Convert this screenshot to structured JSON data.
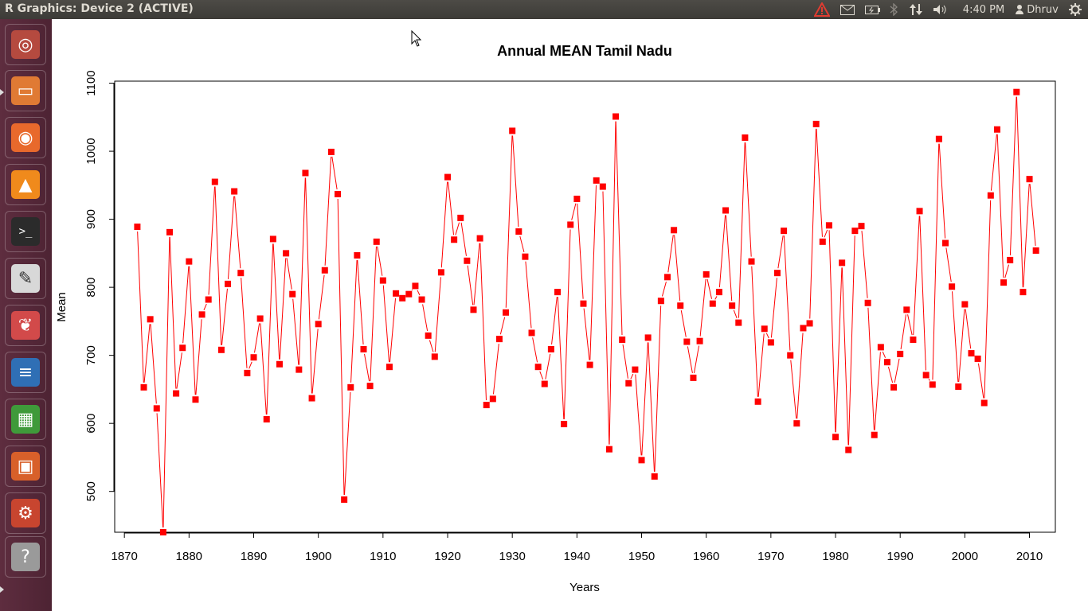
{
  "window": {
    "title": "R Graphics: Device 2 (ACTIVE)"
  },
  "tray": {
    "clock": "4:40 PM",
    "user": "Dhruv"
  },
  "launcher": {
    "items": [
      {
        "name": "ubuntu-dash-icon",
        "color": "#b54a3f"
      },
      {
        "name": "files-icon",
        "color": "#e07a34"
      },
      {
        "name": "firefox-icon",
        "color": "#e8692c"
      },
      {
        "name": "vlc-icon",
        "color": "#f08a1c"
      },
      {
        "name": "terminal-icon",
        "color": "#2b2b2b"
      },
      {
        "name": "text-editor-icon",
        "color": "#d8d8d8"
      },
      {
        "name": "document-viewer-icon",
        "color": "#d24a4a"
      },
      {
        "name": "writer-icon",
        "color": "#2f6fb5"
      },
      {
        "name": "calc-icon",
        "color": "#3f9a3a"
      },
      {
        "name": "impress-icon",
        "color": "#d8602a"
      },
      {
        "name": "system-settings-icon",
        "color": "#c8452f"
      },
      {
        "name": "help-icon",
        "color": "#9a9a9a"
      }
    ]
  },
  "chart_data": {
    "type": "line",
    "title": "Annual MEAN Tamil Nadu",
    "xlabel": "Years",
    "ylabel": "Mean",
    "xlim": [
      1868.5,
      2014
    ],
    "ylim": [
      440,
      1103
    ],
    "xticks": [
      1870,
      1880,
      1890,
      1900,
      1910,
      1920,
      1930,
      1940,
      1950,
      1960,
      1970,
      1980,
      1990,
      2000,
      2010
    ],
    "yticks": [
      500,
      600,
      700,
      800,
      900,
      1000,
      1100
    ],
    "color": "#ff0000",
    "markers": "square",
    "grid": false,
    "series": [
      {
        "x_start": 1872,
        "values": [
          889,
          653,
          753,
          622,
          440,
          881,
          644,
          711,
          838,
          635,
          760,
          782,
          955,
          708,
          805,
          941,
          821,
          674,
          697,
          754,
          606,
          871,
          687,
          850,
          790,
          679,
          968,
          637,
          746,
          825,
          999,
          937,
          488,
          653,
          847,
          709,
          655,
          867,
          810,
          683,
          791,
          784,
          790,
          802,
          782,
          729,
          698,
          822,
          962,
          870,
          902,
          839,
          767,
          872,
          627,
          636,
          724,
          763,
          1030,
          882,
          845,
          733,
          683,
          658,
          709,
          793,
          599,
          892,
          930,
          776,
          686,
          957,
          948,
          562,
          1051,
          723,
          659,
          679,
          546,
          726,
          522,
          780,
          815,
          884,
          773,
          720,
          667,
          721,
          819,
          776,
          793,
          913,
          773,
          748,
          1020,
          838,
          632,
          739,
          719,
          821,
          883,
          700,
          600,
          740,
          747,
          1040,
          867,
          891,
          580,
          836,
          561,
          883,
          890,
          777,
          583,
          712,
          690,
          653,
          702,
          767,
          723,
          912,
          671,
          657,
          1018,
          865,
          801,
          654,
          775,
          703,
          695,
          630,
          935,
          1032,
          807,
          840,
          1087,
          793,
          959,
          854
        ]
      }
    ]
  }
}
